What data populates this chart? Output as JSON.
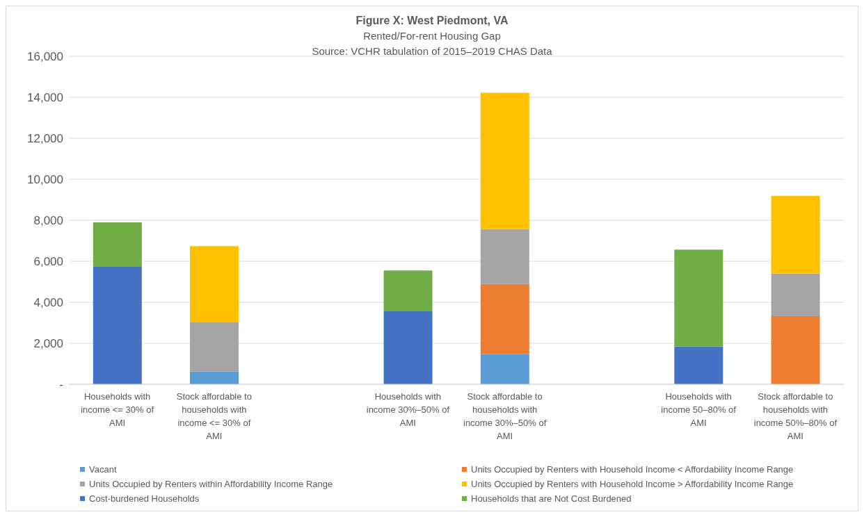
{
  "chart_data": {
    "type": "bar",
    "stacked": true,
    "title": "Figure X: West Piedmont, VA",
    "subtitle": "Rented/For-rent Housing Gap",
    "annotations": [
      "Source: VCHR tabulation of 2015–2019 CHAS Data"
    ],
    "categories": [
      "Households with income <= 30% of AMI",
      "Stock affordable to households with income <= 30% of AMI",
      null,
      "Households with income 30%–50% of AMI",
      "Stock affordable to households with income 30%–50% of AMI",
      null,
      "Households with income 50–80% of AMI",
      "Stock affordable to households with income 50%–80% of AMI"
    ],
    "series": [
      {
        "name": "Vacant",
        "color": "#5b9bd5",
        "values": [
          null,
          630,
          null,
          null,
          1470,
          null,
          null,
          null
        ]
      },
      {
        "name": "Units Occupied by Renters with Household Income < Affordability Income Range",
        "color": "#ed7d31",
        "values": [
          null,
          null,
          null,
          null,
          3420,
          null,
          null,
          3320
        ]
      },
      {
        "name": "Units Occupied by Renters within Affordability Income Range",
        "color": "#a5a5a5",
        "values": [
          null,
          2410,
          null,
          null,
          2690,
          null,
          null,
          2090
        ]
      },
      {
        "name": "Units Occupied by Renters with Household Income > Affordability Income Range",
        "color": "#ffc000",
        "values": [
          null,
          3700,
          null,
          null,
          6640,
          null,
          null,
          3780
        ]
      },
      {
        "name": "Cost-burdened Households",
        "color": "#4472c4",
        "values": [
          5730,
          null,
          null,
          3560,
          null,
          null,
          1850,
          null
        ]
      },
      {
        "name": "Households that are Not Cost Burdened",
        "color": "#70ad47",
        "values": [
          2170,
          null,
          null,
          1990,
          null,
          null,
          4720,
          null
        ]
      }
    ],
    "ylim": [
      0,
      16000
    ],
    "yticks": [
      {
        "value": 0,
        "label": "-"
      },
      {
        "value": 2000,
        "label": "2,000"
      },
      {
        "value": 4000,
        "label": "4,000"
      },
      {
        "value": 6000,
        "label": "6,000"
      },
      {
        "value": 8000,
        "label": "8,000"
      },
      {
        "value": 10000,
        "label": "10,000"
      },
      {
        "value": 12000,
        "label": "12,000"
      },
      {
        "value": 14000,
        "label": "14,000"
      },
      {
        "value": 16000,
        "label": "16,000"
      }
    ],
    "grid": "y",
    "legend": "bottom"
  }
}
